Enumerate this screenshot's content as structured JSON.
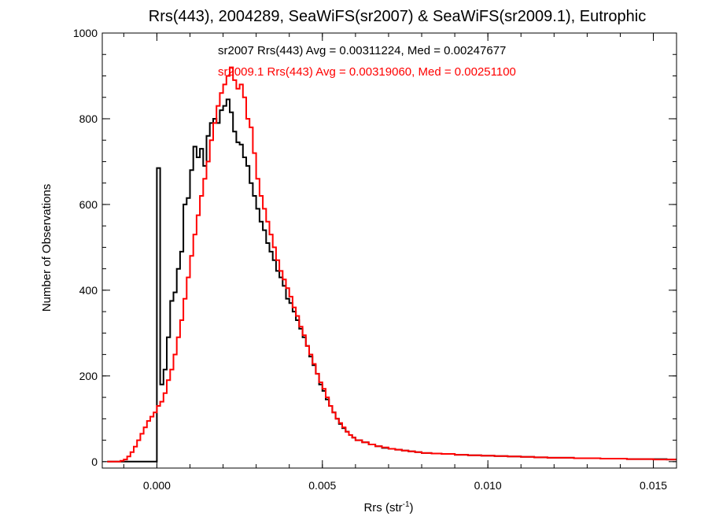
{
  "chart_data": {
    "type": "line",
    "title": "Rrs(443), 2004289, SeaWiFS(sr2007) & SeaWiFS(sr2009.1), Eutrophic",
    "xlabel": "Rrs (str",
    "xlabel_sup": "-1",
    "xlabel_end": ")",
    "ylabel": "Number of Observations",
    "xlim": [
      -0.00165,
      0.0157
    ],
    "ylim": [
      -15,
      1000
    ],
    "xticks": [
      0.0,
      0.005,
      0.01,
      0.015
    ],
    "xtick_labels": [
      "0.000",
      "0.005",
      "0.010",
      "0.015"
    ],
    "yticks": [
      0,
      200,
      400,
      600,
      800,
      1000
    ],
    "ytick_labels": [
      "0",
      "200",
      "400",
      "600",
      "800",
      "1000"
    ],
    "x_minor_step": 0.001,
    "y_minor_step": 50,
    "grid": false,
    "annotations": [
      {
        "text": "sr2007 Rrs(443) Avg = 0.00311224, Med = 0.00247677",
        "color": "#000000"
      },
      {
        "text": "sr2009.1 Rrs(443) Avg = 0.00319060, Med = 0.00251100",
        "color": "#ff0000"
      }
    ],
    "series": [
      {
        "name": "sr2007",
        "color": "#000000",
        "x": [
          -0.0015,
          -0.0012,
          -0.0009,
          -0.0006,
          -0.0003,
          -5e-05,
          0.0,
          0.0001,
          0.0002,
          0.0003,
          0.0004,
          0.0005,
          0.0006,
          0.0007,
          0.0008,
          0.0009,
          0.001,
          0.0011,
          0.0012,
          0.0013,
          0.0014,
          0.0015,
          0.0016,
          0.0017,
          0.0018,
          0.0019,
          0.002,
          0.0021,
          0.0022,
          0.0023,
          0.0024,
          0.0025,
          0.0026,
          0.0027,
          0.0028,
          0.0029,
          0.003,
          0.0031,
          0.0032,
          0.0033,
          0.0034,
          0.0035,
          0.0036,
          0.0037,
          0.0038,
          0.0039,
          0.004,
          0.0041,
          0.0042,
          0.0043,
          0.0044,
          0.0045,
          0.0046,
          0.0047,
          0.0048,
          0.0049,
          0.005,
          0.0051,
          0.0052,
          0.0053,
          0.0054,
          0.0055,
          0.0056,
          0.0057,
          0.0058,
          0.0059,
          0.006,
          0.0062,
          0.0064,
          0.0066,
          0.0068,
          0.007,
          0.0072,
          0.0074,
          0.0076,
          0.0078,
          0.008,
          0.0083,
          0.0086,
          0.009,
          0.0094,
          0.0098,
          0.0102,
          0.0106,
          0.011,
          0.0114,
          0.0118,
          0.0122,
          0.0126,
          0.013,
          0.0134,
          0.0138,
          0.0142,
          0.0146,
          0.015,
          0.0154,
          0.0157
        ],
        "y": [
          0,
          0,
          0,
          0,
          0,
          0,
          685,
          180,
          215,
          290,
          375,
          395,
          450,
          490,
          600,
          615,
          680,
          735,
          710,
          730,
          690,
          760,
          790,
          800,
          790,
          820,
          830,
          845,
          815,
          770,
          745,
          740,
          710,
          690,
          650,
          620,
          590,
          560,
          540,
          510,
          490,
          470,
          445,
          430,
          410,
          380,
          370,
          350,
          330,
          310,
          290,
          270,
          245,
          225,
          205,
          180,
          165,
          145,
          130,
          115,
          100,
          88,
          78,
          70,
          62,
          56,
          50,
          45,
          40,
          36,
          32,
          30,
          28,
          26,
          24,
          22,
          20,
          19,
          18,
          16,
          15,
          14,
          13,
          12,
          11,
          10,
          9,
          9,
          8,
          8,
          7,
          7,
          6,
          6,
          6,
          5,
          5
        ]
      },
      {
        "name": "sr2009.1",
        "color": "#ff0000",
        "x": [
          -0.0015,
          -0.0012,
          -0.0011,
          -0.001,
          -0.0009,
          -0.0008,
          -0.0007,
          -0.0006,
          -0.0005,
          -0.0004,
          -0.0003,
          -0.0002,
          -0.0001,
          0.0,
          0.0001,
          0.0002,
          0.0003,
          0.0004,
          0.0005,
          0.0006,
          0.0007,
          0.0008,
          0.0009,
          0.001,
          0.0011,
          0.0012,
          0.0013,
          0.0014,
          0.0015,
          0.0016,
          0.0017,
          0.0018,
          0.0019,
          0.002,
          0.0021,
          0.0022,
          0.0023,
          0.0024,
          0.0025,
          0.0026,
          0.0027,
          0.0028,
          0.0029,
          0.003,
          0.0031,
          0.0032,
          0.0033,
          0.0034,
          0.0035,
          0.0036,
          0.0037,
          0.0038,
          0.0039,
          0.004,
          0.0041,
          0.0042,
          0.0043,
          0.0044,
          0.0045,
          0.0046,
          0.0047,
          0.0048,
          0.0049,
          0.005,
          0.0051,
          0.0052,
          0.0053,
          0.0054,
          0.0055,
          0.0056,
          0.0057,
          0.0058,
          0.0059,
          0.006,
          0.0062,
          0.0064,
          0.0066,
          0.0068,
          0.007,
          0.0072,
          0.0074,
          0.0076,
          0.0078,
          0.008,
          0.0083,
          0.0086,
          0.009,
          0.0094,
          0.0098,
          0.0102,
          0.0106,
          0.011,
          0.0114,
          0.0118,
          0.0122,
          0.0126,
          0.013,
          0.0134,
          0.0138,
          0.0142,
          0.0146,
          0.015,
          0.0154,
          0.0157
        ],
        "y": [
          0,
          0,
          2,
          5,
          12,
          22,
          35,
          50,
          65,
          80,
          95,
          105,
          115,
          130,
          140,
          160,
          190,
          215,
          250,
          290,
          330,
          380,
          430,
          480,
          530,
          575,
          620,
          660,
          700,
          750,
          790,
          830,
          860,
          880,
          900,
          920,
          890,
          870,
          880,
          850,
          800,
          780,
          720,
          660,
          620,
          590,
          560,
          530,
          500,
          470,
          445,
          425,
          405,
          385,
          360,
          340,
          315,
          295,
          270,
          250,
          228,
          205,
          185,
          170,
          150,
          130,
          115,
          100,
          90,
          80,
          70,
          62,
          56,
          50,
          45,
          40,
          36,
          33,
          30,
          28,
          26,
          24,
          22,
          20,
          19,
          18,
          16,
          15,
          14,
          13,
          12,
          11,
          10,
          9,
          9,
          8,
          8,
          7,
          7,
          6,
          6,
          5,
          5,
          5
        ]
      }
    ]
  }
}
